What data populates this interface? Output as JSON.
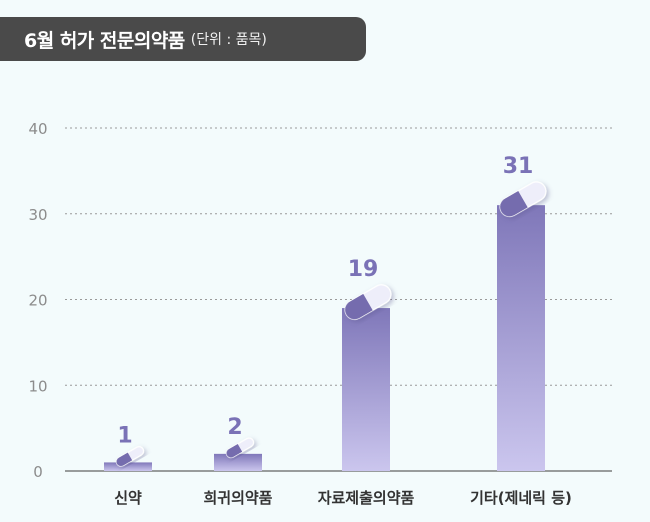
{
  "chart_data": {
    "type": "bar",
    "title": "6월 허가 전문의약품",
    "unit_note": "(단위 : 품목)",
    "categories": [
      "신약",
      "희귀의약품",
      "자료제출의약품",
      "기타(제네릭 등)"
    ],
    "values": [
      1,
      2,
      19,
      31
    ],
    "ylim": [
      0,
      40
    ],
    "yticks": [
      "0",
      "10",
      "20",
      "30",
      "40"
    ],
    "grid": true,
    "bar_color": "#8a82c0",
    "label_color": "#7a72b6"
  }
}
